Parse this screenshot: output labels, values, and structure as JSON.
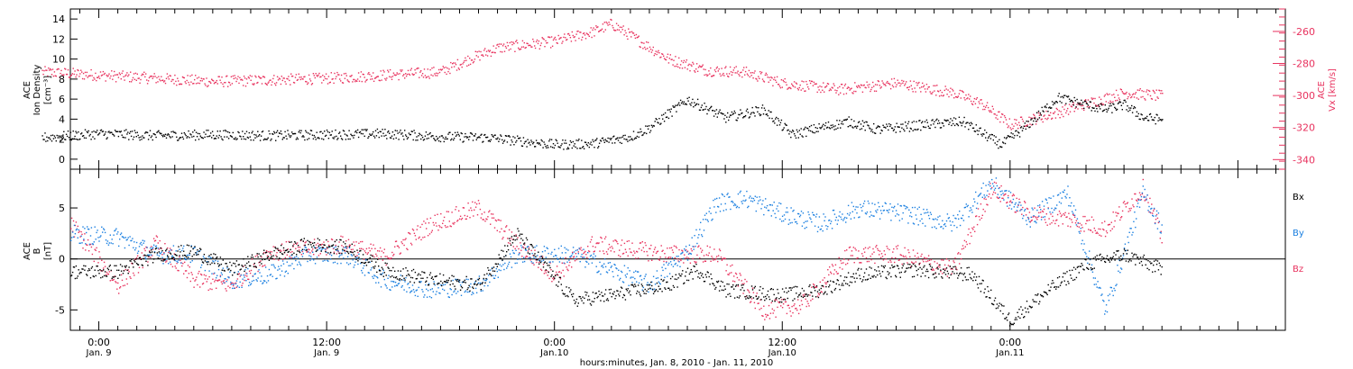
{
  "colors": {
    "black": "#000000",
    "pink": "#e8325e",
    "blue": "#1a7fe0"
  },
  "chart_data": [
    {
      "type": "scatter",
      "panel": "top",
      "left_axis": {
        "label_lines": [
          "ACE",
          "Ion Density"
        ],
        "units": "[cm⁻³]",
        "ylim": [
          -1,
          15
        ],
        "ticks": [
          0,
          2,
          4,
          6,
          8,
          10,
          12,
          14
        ]
      },
      "right_axis": {
        "label_lines": [
          "ACE",
          "Vx [km/s]"
        ],
        "color": "#e8325e",
        "ylim": [
          -346,
          -246
        ],
        "ticks": [
          -260,
          -280,
          -300,
          -320,
          -340
        ]
      },
      "series": [
        {
          "color": "#000000",
          "axis": "left",
          "x": [
            -3,
            0,
            3,
            6,
            9,
            12,
            15,
            18,
            20.5,
            22.5,
            24,
            26,
            28,
            29,
            31,
            33,
            35,
            36.5,
            38,
            39.5,
            41,
            43.5,
            45.5,
            47.5,
            48.5,
            50.5,
            53,
            54,
            55,
            56
          ],
          "y": [
            2.2,
            2.6,
            2.4,
            2.5,
            2.4,
            2.5,
            2.6,
            2.3,
            2.2,
            1.8,
            1.5,
            1.6,
            2.3,
            3.2,
            6.0,
            4.2,
            5.0,
            2.5,
            3.2,
            3.8,
            3.0,
            3.5,
            3.8,
            1.5,
            2.8,
            6.2,
            5.0,
            5.5,
            4.2,
            4.0
          ]
        },
        {
          "color": "#e8325e",
          "axis": "right",
          "x": [
            -3,
            0,
            3,
            6,
            9,
            12,
            15,
            18,
            19.5,
            21,
            24,
            26,
            27,
            28.5,
            30,
            32,
            34,
            36,
            39,
            42,
            45,
            46.5,
            48,
            50,
            52,
            54,
            56
          ],
          "y": [
            -285,
            -287,
            -289,
            -291,
            -290,
            -289,
            -287,
            -285,
            -277,
            -270,
            -266,
            -260,
            -255,
            -266,
            -277,
            -284,
            -285,
            -292,
            -296,
            -292,
            -298,
            -305,
            -318,
            -312,
            -305,
            -298,
            -300
          ]
        }
      ],
      "xlim": [
        -1.5,
        62.5
      ]
    },
    {
      "type": "scatter",
      "panel": "bottom",
      "left_axis": {
        "label_lines": [
          "ACE",
          "B"
        ],
        "units": "[nT]",
        "ylim": [
          -7,
          8.8
        ],
        "ticks": [
          -5,
          0,
          5
        ]
      },
      "legend": {
        "placement": "right",
        "entries": [
          {
            "label": "Bx",
            "color": "#000000"
          },
          {
            "label": "By",
            "color": "#1a7fe0"
          },
          {
            "label": "Bz",
            "color": "#e8325e"
          }
        ]
      },
      "series": [
        {
          "name": "Bx",
          "color": "#000000",
          "x": [
            -1.5,
            1,
            3,
            5,
            7,
            9,
            11,
            13,
            15,
            17.5,
            20,
            22,
            25,
            27,
            30,
            31.5,
            33,
            36,
            38,
            40,
            43,
            46,
            48,
            50,
            52,
            54,
            56
          ],
          "y": [
            -1.2,
            -1.2,
            0.5,
            0.8,
            -1.0,
            0.5,
            1.5,
            1.2,
            -1.0,
            -2.0,
            -2.5,
            2.5,
            -4.0,
            -3.5,
            -2.5,
            -1.0,
            -3.0,
            -3.5,
            -3.0,
            -1.5,
            -1.0,
            -1.5,
            -6.0,
            -3.0,
            -0.5,
            0.5,
            -1.0
          ]
        },
        {
          "name": "By",
          "color": "#1a7fe0",
          "x": [
            -1.5,
            1,
            3,
            5,
            7,
            9,
            11,
            13,
            15,
            17.5,
            20,
            22,
            25,
            27,
            29,
            31,
            32.5,
            34,
            36,
            38,
            40,
            42.5,
            45,
            47,
            49,
            51,
            53,
            55,
            56
          ],
          "y": [
            2.5,
            2.2,
            0.5,
            0.5,
            -2.0,
            -1.5,
            0.5,
            0.5,
            -2.0,
            -3.0,
            -2.5,
            0.5,
            0.5,
            -1.0,
            -2.5,
            0.8,
            5.5,
            6.0,
            4.5,
            3.5,
            5.0,
            4.5,
            3.5,
            7.5,
            4.0,
            6.5,
            -5.0,
            6.5,
            3.0
          ]
        },
        {
          "name": "Bz",
          "color": "#e8325e",
          "x": [
            -1.5,
            1,
            3,
            5,
            7,
            9,
            11,
            13,
            15,
            17.5,
            20,
            22,
            24,
            26,
            28,
            30,
            32.5,
            35,
            37,
            39.5,
            42,
            45,
            47,
            49,
            51,
            53,
            55,
            56
          ],
          "y": [
            3.5,
            -2.5,
            1.5,
            -2.0,
            -2.5,
            0.8,
            1.0,
            1.5,
            0.2,
            3.5,
            5.0,
            1.5,
            -1.5,
            1.5,
            1.0,
            0.5,
            0.5,
            -5.0,
            -4.5,
            0.5,
            0.5,
            -1.0,
            7.0,
            4.5,
            4.0,
            3.0,
            7.0,
            2.0
          ]
        }
      ],
      "xlim": [
        -1.5,
        62.5
      ]
    }
  ],
  "x_axis": {
    "ticks": [
      {
        "hour": 0,
        "time": "0:00",
        "date": "Jan. 9"
      },
      {
        "hour": 12,
        "time": "12:00",
        "date": "Jan. 9"
      },
      {
        "hour": 24,
        "time": "0:00",
        "date": "Jan.10"
      },
      {
        "hour": 36,
        "time": "12:00",
        "date": "Jan.10"
      },
      {
        "hour": 48,
        "time": "0:00",
        "date": "Jan.11"
      }
    ],
    "title": "hours:minutes, Jan. 8, 2010 - Jan. 11, 2010"
  }
}
